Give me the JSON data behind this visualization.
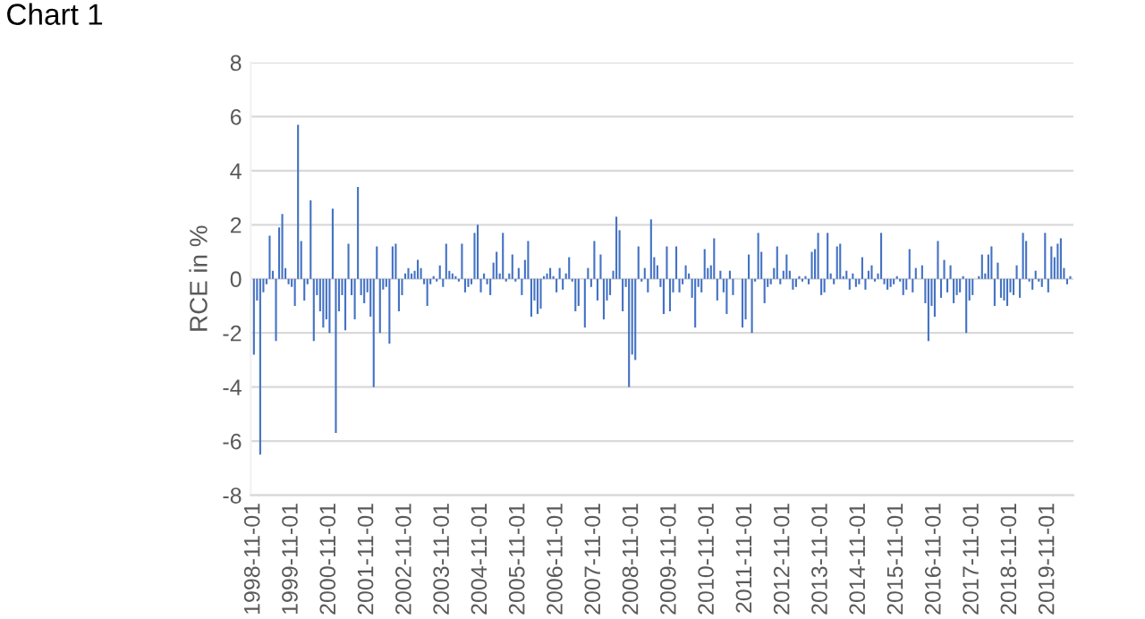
{
  "chart_data": {
    "type": "bar",
    "title": "Chart 1",
    "ylabel": "RCE in %",
    "categories": [
      "1998-11-01",
      null,
      null,
      null,
      null,
      null,
      null,
      null,
      null,
      null,
      null,
      null,
      "1999-11-01",
      null,
      null,
      null,
      null,
      null,
      null,
      null,
      null,
      null,
      null,
      null,
      "2000-11-01",
      null,
      null,
      null,
      null,
      null,
      null,
      null,
      null,
      null,
      null,
      null,
      "2001-11-01",
      null,
      null,
      null,
      null,
      null,
      null,
      null,
      null,
      null,
      null,
      null,
      "2002-11-01",
      null,
      null,
      null,
      null,
      null,
      null,
      null,
      null,
      null,
      null,
      null,
      "2003-11-01",
      null,
      null,
      null,
      null,
      null,
      null,
      null,
      null,
      null,
      null,
      null,
      "2004-11-01",
      null,
      null,
      null,
      null,
      null,
      null,
      null,
      null,
      null,
      null,
      null,
      "2005-11-01",
      null,
      null,
      null,
      null,
      null,
      null,
      null,
      null,
      null,
      null,
      null,
      "2006-11-01",
      null,
      null,
      null,
      null,
      null,
      null,
      null,
      null,
      null,
      null,
      null,
      "2007-11-01",
      null,
      null,
      null,
      null,
      null,
      null,
      null,
      null,
      null,
      null,
      null,
      "2008-11-01",
      null,
      null,
      null,
      null,
      null,
      null,
      null,
      null,
      null,
      null,
      null,
      "2009-11-01",
      null,
      null,
      null,
      null,
      null,
      null,
      null,
      null,
      null,
      null,
      null,
      "2010-11-01",
      null,
      null,
      null,
      null,
      null,
      null,
      null,
      null,
      null,
      null,
      null,
      "2011-11-01",
      null,
      null,
      null,
      null,
      null,
      null,
      null,
      null,
      null,
      null,
      null,
      "2012-11-01",
      null,
      null,
      null,
      null,
      null,
      null,
      null,
      null,
      null,
      null,
      null,
      "2013-11-01",
      null,
      null,
      null,
      null,
      null,
      null,
      null,
      null,
      null,
      null,
      null,
      "2014-11-01",
      null,
      null,
      null,
      null,
      null,
      null,
      null,
      null,
      null,
      null,
      null,
      "2015-11-01",
      null,
      null,
      null,
      null,
      null,
      null,
      null,
      null,
      null,
      null,
      null,
      "2016-11-01",
      null,
      null,
      null,
      null,
      null,
      null,
      null,
      null,
      null,
      null,
      null,
      "2017-11-01",
      null,
      null,
      null,
      null,
      null,
      null,
      null,
      null,
      null,
      null,
      null,
      "2018-11-01",
      null,
      null,
      null,
      null,
      null,
      null,
      null,
      null,
      null,
      null,
      null,
      "2019-11-01",
      null,
      null,
      null,
      null,
      null,
      null,
      null
    ],
    "values": [
      -2.8,
      -0.8,
      -6.5,
      -0.5,
      -0.2,
      1.6,
      0.3,
      -2.3,
      1.9,
      2.4,
      0.4,
      -0.2,
      -0.3,
      -1.0,
      5.7,
      1.4,
      -0.8,
      -0.2,
      2.9,
      -2.3,
      -0.6,
      -1.2,
      -1.8,
      -1.5,
      -2.0,
      2.6,
      -5.7,
      -1.2,
      -0.6,
      -1.9,
      1.3,
      -0.6,
      -1.5,
      3.4,
      -0.6,
      -0.9,
      -0.5,
      -1.4,
      -4.0,
      1.2,
      -2.0,
      -0.4,
      -0.3,
      -2.4,
      1.2,
      1.3,
      -1.2,
      -0.6,
      0.2,
      0.4,
      0.2,
      0.3,
      0.7,
      0.4,
      -0.2,
      -1.0,
      -0.2,
      0.1,
      -0.1,
      0.5,
      -0.3,
      1.3,
      0.3,
      0.2,
      0.1,
      -0.1,
      1.3,
      -0.5,
      -0.3,
      -0.2,
      1.7,
      2.0,
      -0.5,
      0.2,
      -0.2,
      -0.6,
      0.6,
      1.0,
      0.2,
      1.7,
      -0.1,
      0.2,
      0.9,
      -0.1,
      0.4,
      -0.6,
      0.7,
      1.4,
      -1.4,
      -0.8,
      -1.3,
      -1.1,
      0.1,
      0.2,
      0.4,
      0.1,
      -0.5,
      0.4,
      -0.4,
      0.2,
      0.8,
      -0.1,
      -1.2,
      -1.0,
      0.0,
      -1.8,
      0.4,
      -0.3,
      1.4,
      -0.8,
      0.9,
      -1.5,
      -0.8,
      -0.6,
      0.3,
      2.3,
      1.8,
      -1.2,
      -0.3,
      -4.0,
      -2.8,
      -3.0,
      1.2,
      -0.1,
      0.4,
      -0.5,
      2.2,
      0.8,
      0.5,
      -0.3,
      -1.3,
      1.2,
      -1.2,
      -0.5,
      1.2,
      -0.5,
      -0.2,
      0.5,
      0.2,
      -0.7,
      -1.8,
      -0.3,
      -0.5,
      1.1,
      0.4,
      0.5,
      1.5,
      -0.8,
      0.3,
      -0.5,
      -1.3,
      0.3,
      -0.6,
      0.0,
      0.0,
      -1.8,
      -1.5,
      0.9,
      -2.0,
      -0.1,
      1.7,
      1.0,
      -0.9,
      -0.3,
      -0.2,
      0.4,
      1.2,
      -0.2,
      0.3,
      0.9,
      0.3,
      -0.4,
      -0.3,
      0.1,
      -0.1,
      0.1,
      -0.2,
      1.0,
      1.1,
      1.7,
      -0.6,
      -0.5,
      1.7,
      0.2,
      -0.2,
      1.2,
      1.3,
      0.1,
      0.3,
      -0.4,
      0.2,
      -0.3,
      -0.2,
      0.8,
      -0.4,
      0.3,
      0.5,
      -0.1,
      0.2,
      1.7,
      -0.2,
      -0.4,
      -0.3,
      -0.2,
      0.1,
      -0.1,
      -0.6,
      -0.4,
      1.1,
      -0.5,
      0.4,
      0.0,
      0.5,
      -0.9,
      -2.3,
      -1.0,
      -1.4,
      1.4,
      -0.7,
      0.7,
      -0.5,
      0.5,
      -0.9,
      -0.6,
      -0.5,
      0.1,
      -2.0,
      -0.8,
      -0.6,
      0.0,
      0.1,
      0.9,
      0.2,
      0.9,
      1.2,
      -1.0,
      0.6,
      -0.7,
      -0.8,
      -1.0,
      -0.5,
      -0.6,
      0.5,
      -0.7,
      1.7,
      1.4,
      -0.1,
      -0.4,
      0.3,
      -0.1,
      -0.3,
      1.7,
      -0.5,
      1.2,
      0.8,
      1.3,
      1.5,
      0.4,
      -0.2,
      0.1
    ],
    "color": "#4472c4",
    "ylim": [
      -8,
      8
    ],
    "yticks": [
      -8,
      -6,
      -4,
      -2,
      0,
      2,
      4,
      6,
      8
    ],
    "grid": "y"
  }
}
